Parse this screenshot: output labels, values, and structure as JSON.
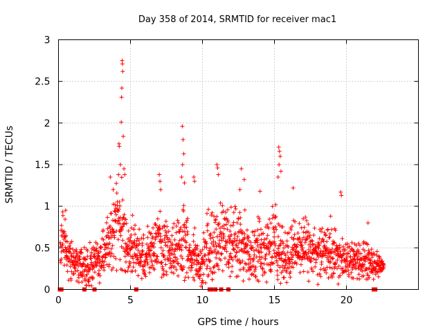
{
  "chart_data": {
    "type": "scatter",
    "title": "Day 358 of 2014, SRMTID for receiver mac1",
    "xlabel": "GPS time / hours",
    "ylabel": "SRMTID / TECUs",
    "xlim": [
      0,
      25
    ],
    "ylim": [
      0,
      3
    ],
    "x_ticks": [
      0,
      5,
      10,
      15,
      20
    ],
    "x_tick_labels": [
      "0",
      "5",
      "10",
      "15",
      "20"
    ],
    "y_ticks": [
      0,
      0.5,
      1,
      1.5,
      2,
      2.5,
      3
    ],
    "y_tick_labels": [
      "0",
      "0.5",
      "1",
      "1.5",
      "2",
      "2.5",
      "3"
    ],
    "grid": true,
    "marker": "+",
    "series_color": "#ff0000",
    "envelope": {
      "hours": [
        0.0,
        0.3,
        0.5,
        0.8,
        1.0,
        1.5,
        2.0,
        2.5,
        3.0,
        3.5,
        3.8,
        4.0,
        4.3,
        4.5,
        4.8,
        5.0,
        5.5,
        6.0,
        6.5,
        7.0,
        7.3,
        7.6,
        8.0,
        8.5,
        8.7,
        9.0,
        9.5,
        9.8,
        10.0,
        10.3,
        10.6,
        11.0,
        11.3,
        11.6,
        12.0,
        12.5,
        13.0,
        13.5,
        14.0,
        14.5,
        15.0,
        15.3,
        15.6,
        16.0,
        16.5,
        17.0,
        17.5,
        18.0,
        18.5,
        19.0,
        19.5,
        20.0,
        20.5,
        21.0,
        21.5,
        22.0,
        22.5
      ],
      "center": [
        0.45,
        0.6,
        0.5,
        0.4,
        0.3,
        0.3,
        0.28,
        0.35,
        0.4,
        0.5,
        0.75,
        0.8,
        0.85,
        0.7,
        0.5,
        0.55,
        0.45,
        0.4,
        0.45,
        0.6,
        0.55,
        0.45,
        0.45,
        0.55,
        0.6,
        0.5,
        0.4,
        0.25,
        0.3,
        0.5,
        0.55,
        0.5,
        0.65,
        0.55,
        0.6,
        0.55,
        0.5,
        0.45,
        0.5,
        0.55,
        0.55,
        0.45,
        0.4,
        0.45,
        0.5,
        0.5,
        0.45,
        0.4,
        0.45,
        0.45,
        0.35,
        0.35,
        0.35,
        0.35,
        0.35,
        0.3,
        0.3
      ],
      "spread": [
        0.25,
        0.3,
        0.3,
        0.25,
        0.2,
        0.2,
        0.2,
        0.25,
        0.3,
        0.35,
        0.45,
        0.55,
        0.6,
        0.5,
        0.3,
        0.3,
        0.25,
        0.25,
        0.3,
        0.4,
        0.35,
        0.3,
        0.3,
        0.35,
        0.45,
        0.35,
        0.3,
        0.2,
        0.25,
        0.35,
        0.4,
        0.35,
        0.4,
        0.35,
        0.45,
        0.4,
        0.35,
        0.3,
        0.35,
        0.4,
        0.45,
        0.35,
        0.3,
        0.3,
        0.3,
        0.3,
        0.3,
        0.3,
        0.3,
        0.3,
        0.25,
        0.2,
        0.2,
        0.2,
        0.2,
        0.15,
        0.1
      ]
    },
    "peaks": [
      {
        "x": 4.42,
        "y": 2.75
      },
      {
        "x": 4.44,
        "y": 2.71
      },
      {
        "x": 4.46,
        "y": 2.62
      },
      {
        "x": 4.4,
        "y": 2.42
      },
      {
        "x": 4.38,
        "y": 2.31
      },
      {
        "x": 4.36,
        "y": 2.01
      },
      {
        "x": 4.5,
        "y": 1.84
      },
      {
        "x": 4.2,
        "y": 1.75
      },
      {
        "x": 4.22,
        "y": 1.72
      },
      {
        "x": 4.3,
        "y": 1.5
      },
      {
        "x": 4.55,
        "y": 1.45
      },
      {
        "x": 4.6,
        "y": 1.38
      },
      {
        "x": 8.6,
        "y": 1.96
      },
      {
        "x": 8.65,
        "y": 1.8
      },
      {
        "x": 8.7,
        "y": 1.63
      },
      {
        "x": 8.62,
        "y": 1.5
      },
      {
        "x": 8.55,
        "y": 1.35
      },
      {
        "x": 8.75,
        "y": 1.28
      },
      {
        "x": 15.3,
        "y": 1.71
      },
      {
        "x": 15.35,
        "y": 1.66
      },
      {
        "x": 15.4,
        "y": 1.6
      },
      {
        "x": 15.32,
        "y": 1.5
      },
      {
        "x": 15.45,
        "y": 1.42
      },
      {
        "x": 15.25,
        "y": 1.35
      },
      {
        "x": 11.0,
        "y": 1.5
      },
      {
        "x": 11.05,
        "y": 1.46
      },
      {
        "x": 11.1,
        "y": 1.38
      },
      {
        "x": 12.7,
        "y": 1.45
      },
      {
        "x": 12.9,
        "y": 1.32
      },
      {
        "x": 12.6,
        "y": 1.2
      },
      {
        "x": 7.0,
        "y": 1.38
      },
      {
        "x": 7.05,
        "y": 1.3
      },
      {
        "x": 7.1,
        "y": 1.2
      },
      {
        "x": 9.4,
        "y": 1.35
      },
      {
        "x": 9.45,
        "y": 1.3
      },
      {
        "x": 16.3,
        "y": 1.22
      },
      {
        "x": 14.0,
        "y": 1.18
      },
      {
        "x": 19.6,
        "y": 1.17
      },
      {
        "x": 19.65,
        "y": 1.13
      },
      {
        "x": 3.6,
        "y": 1.35
      },
      {
        "x": 3.8,
        "y": 1.2
      },
      {
        "x": 0.5,
        "y": 0.95
      },
      {
        "x": 18.9,
        "y": 0.88
      },
      {
        "x": 21.5,
        "y": 0.8
      },
      {
        "x": 17.0,
        "y": 0.85
      }
    ],
    "gap_markers": [
      0.1,
      0.2,
      1.8,
      2.5,
      5.4,
      10.5,
      10.6,
      10.9,
      11.3,
      11.8,
      21.9,
      22.0
    ],
    "x_range": [
      0.1,
      22.6
    ]
  }
}
